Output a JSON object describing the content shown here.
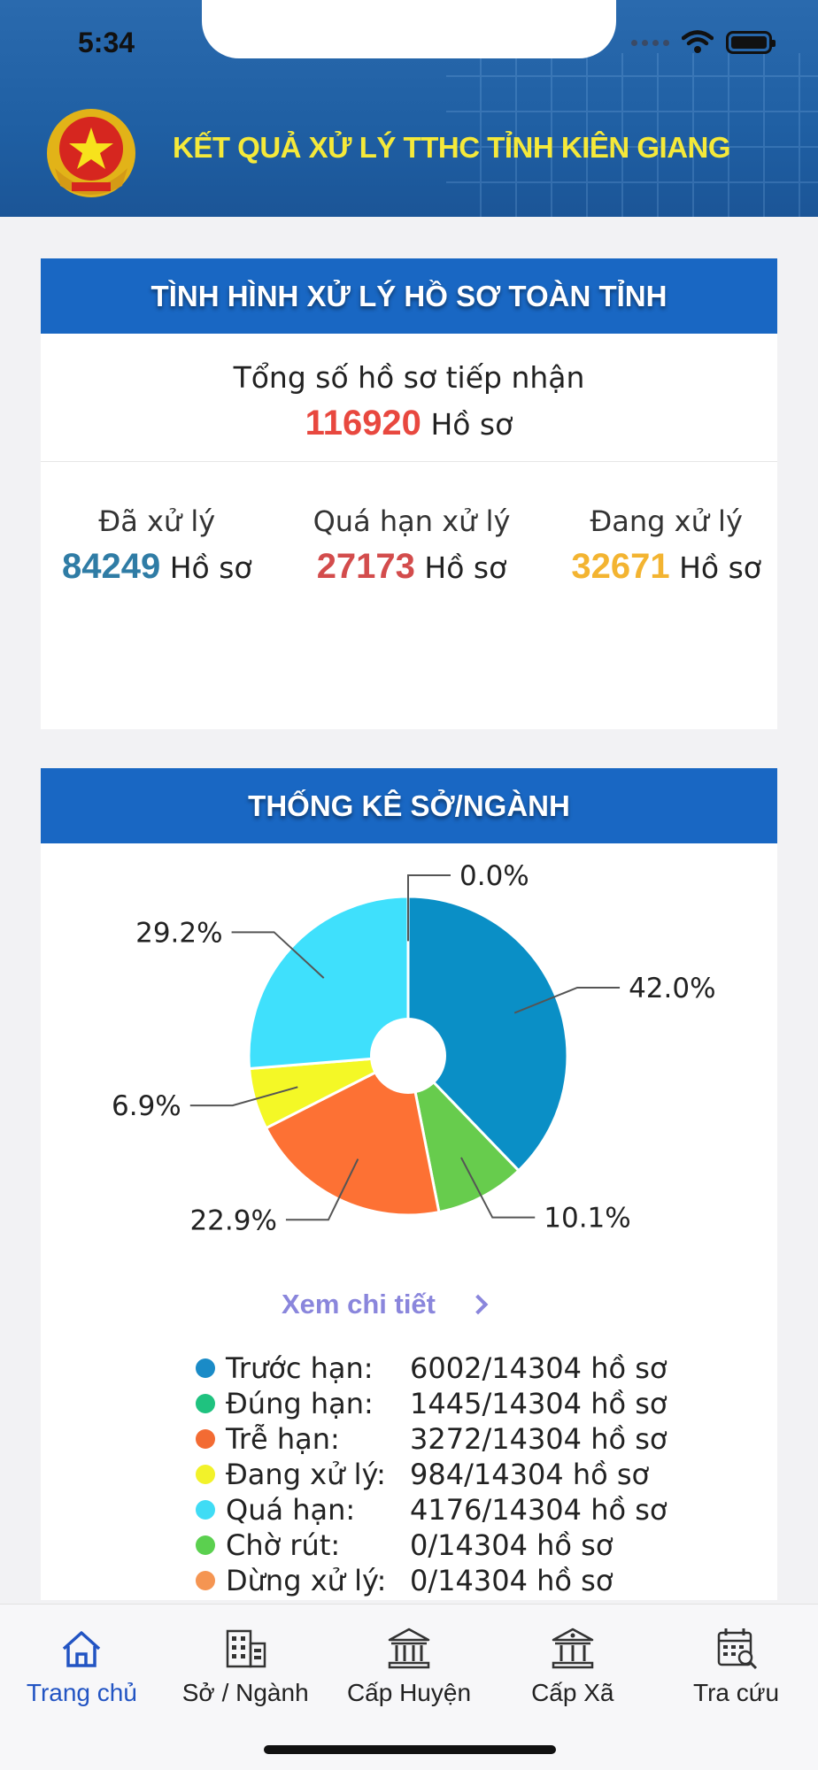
{
  "status_bar": {
    "time": "5:34"
  },
  "header": {
    "title": "KẾT QUẢ XỬ LÝ TTHC TỈNH KIÊN GIANG",
    "emblem_icon": "vietnam-national-emblem"
  },
  "overview": {
    "heading": "TÌNH HÌNH XỬ LÝ HỒ SƠ TOÀN TỈNH",
    "total_label": "Tổng số hồ sơ tiếp nhận",
    "total_value": "116920",
    "unit": "Hồ sơ",
    "stats": [
      {
        "label": "Đã xử lý",
        "value": "84249",
        "unit": "Hồ sơ",
        "color": "#2f7ca5"
      },
      {
        "label": "Quá hạn xử lý",
        "value": "27173",
        "unit": "Hồ sơ",
        "color": "#d34c4c"
      },
      {
        "label": "Đang xử lý",
        "value": "32671",
        "unit": "Hồ sơ",
        "color": "#f3b431"
      }
    ]
  },
  "department_stats": {
    "heading": "THỐNG KÊ SỞ/NGÀNH",
    "detail_link": "Xem chi tiết",
    "legend": [
      {
        "name": "Trước hạn:",
        "value": "6002/14304 hồ sơ",
        "color": "#1a8bc7"
      },
      {
        "name": "Đúng hạn:",
        "value": "1445/14304 hồ sơ",
        "color": "#1fc27f"
      },
      {
        "name": "Trễ hạn:",
        "value": "3272/14304 hồ sơ",
        "color": "#f36b33"
      },
      {
        "name": "Đang xử lý:",
        "value": "984/14304 hồ sơ",
        "color": "#f2f22a"
      },
      {
        "name": "Quá hạn:",
        "value": "4176/14304 hồ sơ",
        "color": "#40dcf5"
      },
      {
        "name": "Chờ rút:",
        "value": "0/14304 hồ sơ",
        "color": "#5bd04f"
      },
      {
        "name": "Dừng xử lý:",
        "value": "0/14304 hồ sơ",
        "color": "#f59552"
      }
    ]
  },
  "chart_data": {
    "type": "pie",
    "slices": [
      {
        "label": "42.0%",
        "value": 42.0,
        "color": "#0a8fc6"
      },
      {
        "label": "10.1%",
        "value": 10.1,
        "color": "#67cc4d"
      },
      {
        "label": "22.9%",
        "value": 22.9,
        "color": "#fd7134"
      },
      {
        "label": "6.9%",
        "value": 6.9,
        "color": "#f4f826"
      },
      {
        "label": "29.2%",
        "value": 29.2,
        "color": "#3fe0fc"
      },
      {
        "label": "0.0%",
        "value": 0.0,
        "color": "#1fc27f"
      }
    ]
  },
  "tabbar": [
    {
      "label": "Trang chủ",
      "icon": "home-icon",
      "active": true
    },
    {
      "label": "Sở / Ngành",
      "icon": "building-icon",
      "active": false
    },
    {
      "label": "Cấp Huyện",
      "icon": "government-building-icon",
      "active": false
    },
    {
      "label": "Cấp Xã",
      "icon": "bank-icon",
      "active": false
    },
    {
      "label": "Tra cứu",
      "icon": "calendar-search-icon",
      "active": false
    }
  ]
}
